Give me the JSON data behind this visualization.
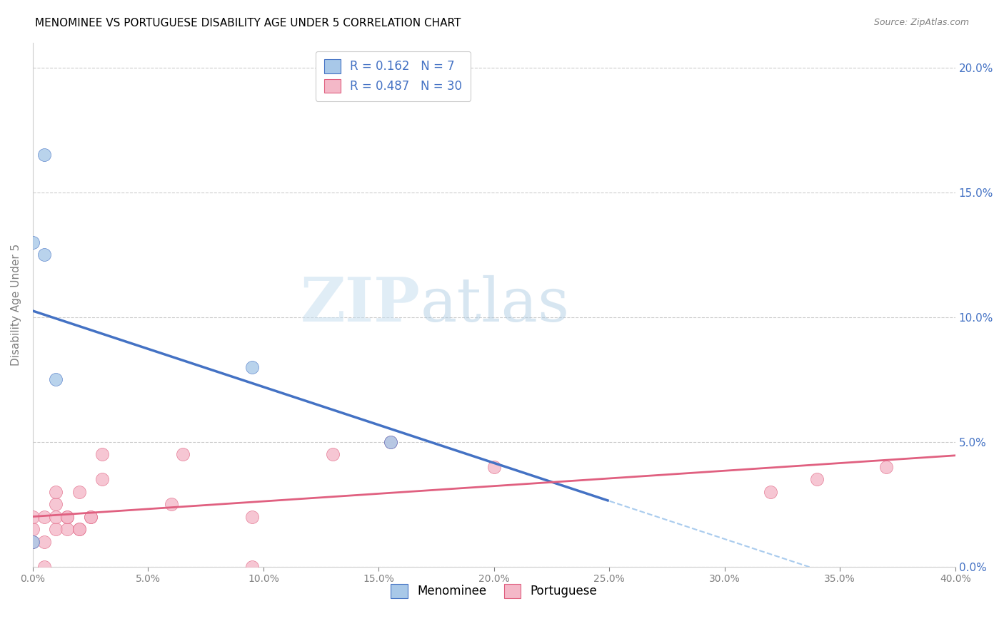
{
  "title": "MENOMINEE VS PORTUGUESE DISABILITY AGE UNDER 5 CORRELATION CHART",
  "source": "Source: ZipAtlas.com",
  "ylabel": "Disability Age Under 5",
  "watermark": "ZIPatlas",
  "menominee_x": [
    0.0,
    0.0,
    0.005,
    0.005,
    0.01,
    0.095,
    0.155
  ],
  "menominee_y": [
    0.01,
    0.13,
    0.165,
    0.125,
    0.075,
    0.08,
    0.05
  ],
  "portuguese_x": [
    0.0,
    0.0,
    0.0,
    0.005,
    0.005,
    0.005,
    0.01,
    0.01,
    0.01,
    0.01,
    0.015,
    0.015,
    0.015,
    0.02,
    0.02,
    0.02,
    0.025,
    0.025,
    0.03,
    0.03,
    0.06,
    0.065,
    0.095,
    0.095,
    0.13,
    0.155,
    0.2,
    0.32,
    0.34,
    0.37
  ],
  "portuguese_y": [
    0.01,
    0.015,
    0.02,
    0.0,
    0.01,
    0.02,
    0.015,
    0.02,
    0.025,
    0.03,
    0.015,
    0.02,
    0.02,
    0.015,
    0.015,
    0.03,
    0.02,
    0.02,
    0.035,
    0.045,
    0.025,
    0.045,
    0.0,
    0.02,
    0.045,
    0.05,
    0.04,
    0.03,
    0.035,
    0.04
  ],
  "menominee_R": 0.162,
  "menominee_N": 7,
  "portuguese_R": 0.487,
  "portuguese_N": 30,
  "xlim": [
    0.0,
    0.4
  ],
  "ylim": [
    0.0,
    0.21
  ],
  "menominee_color": "#a8c8e8",
  "menominee_line_color": "#4472c4",
  "portuguese_color": "#f4b8c8",
  "portuguese_line_color": "#e06080",
  "scatter_size": 120,
  "title_fontsize": 11,
  "axis_label_fontsize": 10,
  "tick_fontsize": 10,
  "legend_fontsize": 12,
  "source_fontsize": 9,
  "blue_line_solid_end": 0.25,
  "blue_line_dashed_color": "#aaccee"
}
